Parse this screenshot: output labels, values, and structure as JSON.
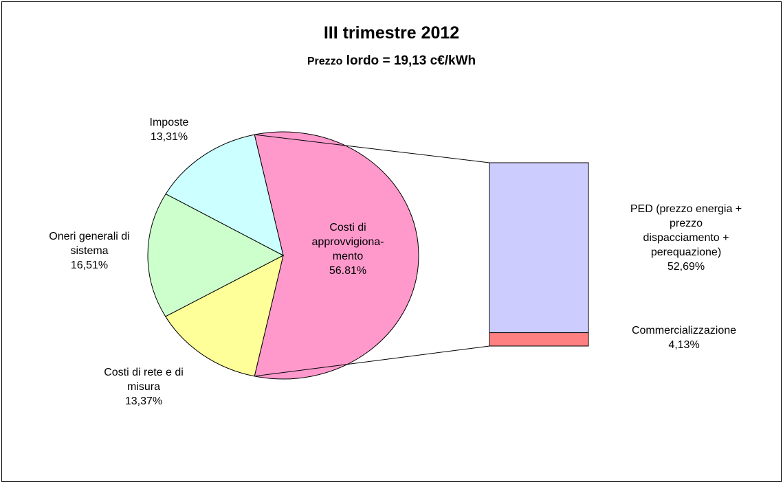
{
  "title": "III trimestre 2012",
  "subtitle_prefix": "Prezzo",
  "subtitle_rest": "lordo = 19,13 c€/kWh",
  "chart_data": {
    "type": "bar-of-pie",
    "title": "III trimestre 2012",
    "subtitle": "Prezzo lordo = 19,13 c€/kWh",
    "pie": [
      {
        "label_lines": [
          "Costi di",
          "approvvigiona-",
          "mento",
          "56.81%"
        ],
        "category": "Costi di approvvigionamento",
        "value": 56.81,
        "color": "#ff99cc"
      },
      {
        "label_lines": [
          "Costi di rete e di",
          "misura",
          "13,37%"
        ],
        "category": "Costi di rete e di misura",
        "value": 13.37,
        "color": "#ffff99"
      },
      {
        "label_lines": [
          "Oneri generali di",
          "sistema",
          "16,51%"
        ],
        "category": "Oneri generali di sistema",
        "value": 16.51,
        "color": "#ccffcc"
      },
      {
        "label_lines": [
          "Imposte",
          "13,31%"
        ],
        "category": "Imposte",
        "value": 13.31,
        "color": "#ccffff"
      }
    ],
    "bar": [
      {
        "label_lines": [
          "PED (prezzo energia +",
          "prezzo",
          "dispacciamento +",
          "perequazione)",
          "52,69%"
        ],
        "category": "PED (prezzo energia + prezzo dispacciamento + perequazione)",
        "value": 52.69,
        "color": "#ccccff"
      },
      {
        "label_lines": [
          "Commercializzazione",
          "4,13%"
        ],
        "category": "Commercializzazione",
        "value": 4.13,
        "color": "#ff8080"
      }
    ]
  }
}
